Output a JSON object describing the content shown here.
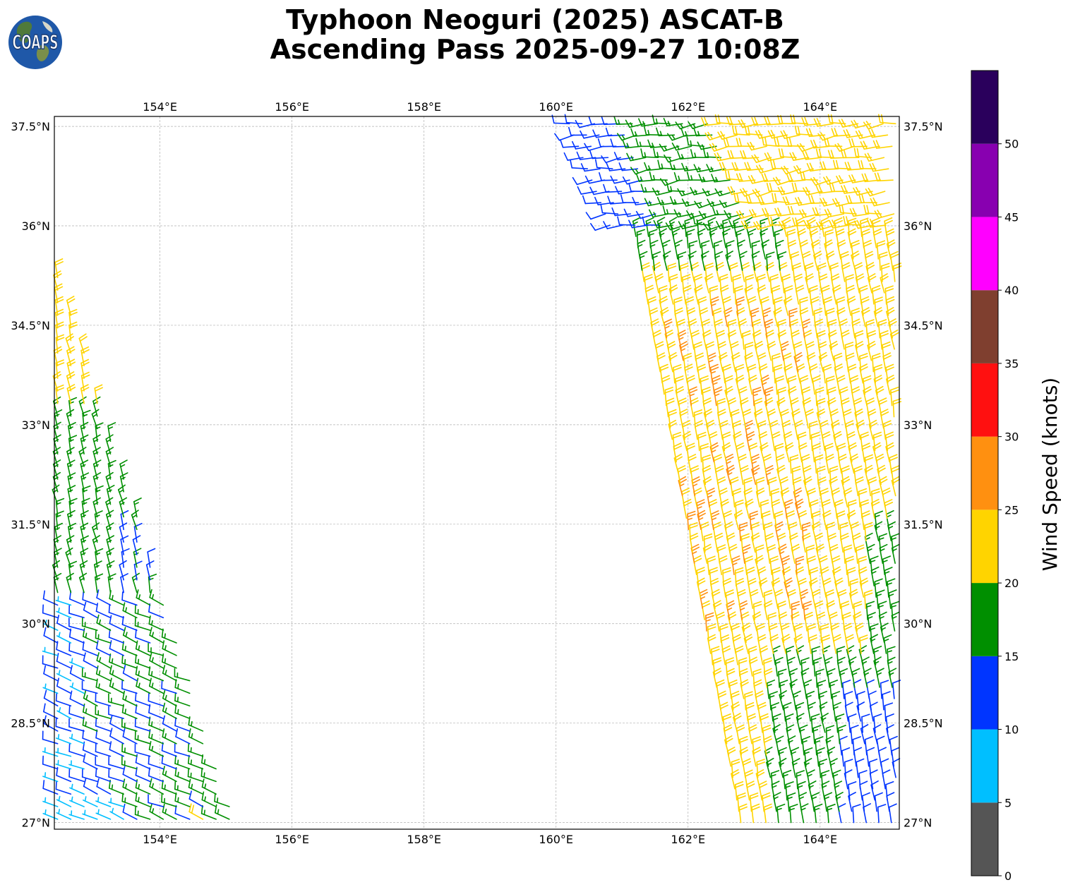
{
  "header": {
    "title_line_1": "Typhoon Neoguri (2025) ASCAT-B",
    "title_line_2": "Ascending Pass 2025-09-27 10:08Z",
    "logo_text": "COAPS"
  },
  "map": {
    "lon_range": [
      152.4,
      165.2
    ],
    "lat_range": [
      26.9,
      37.65
    ],
    "lon_ticks": [
      154,
      156,
      158,
      160,
      162,
      164
    ],
    "lon_tick_labels": [
      "154°E",
      "156°E",
      "158°E",
      "160°E",
      "162°E",
      "164°E"
    ],
    "lat_ticks": [
      27,
      28.5,
      30,
      31.5,
      33,
      34.5,
      36,
      37.5
    ],
    "lat_tick_labels": [
      "27°N",
      "28.5°N",
      "30°N",
      "31.5°N",
      "33°N",
      "34.5°N",
      "36°N",
      "37.5°N"
    ],
    "gridlines": true,
    "data_layer": "wind barbs (knots)",
    "wind_speed_bins_kt": [
      0,
      5,
      10,
      15,
      20,
      25,
      30,
      35,
      40,
      45,
      50,
      55
    ],
    "wind_colors": [
      "#555555",
      "#00bfff",
      "#0035ff",
      "#008f00",
      "#ffd400",
      "#ff9010",
      "#ff1010",
      "#7f3f2f",
      "#ff00ff",
      "#8800b0",
      "#2a005c"
    ]
  },
  "colorbar": {
    "label": "Wind Speed (knots)",
    "tick_values": [
      0,
      5,
      10,
      15,
      20,
      25,
      30,
      35,
      40,
      45,
      50
    ],
    "tick_labels": [
      "0",
      "5",
      "10",
      "15",
      "20",
      "25",
      "30",
      "35",
      "40",
      "45",
      "50"
    ]
  }
}
